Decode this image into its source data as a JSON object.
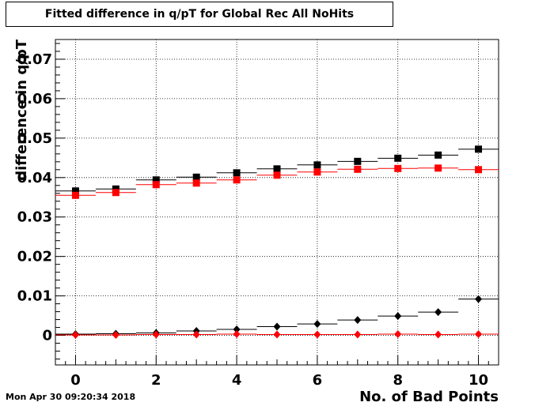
{
  "chart_data": {
    "type": "scatter",
    "title": "Fitted difference in q/pT for Global Rec All NoHits",
    "xlabel": "No. of Bad Points",
    "ylabel": "difference in q/pT",
    "xlim": [
      -0.5,
      10.5
    ],
    "ylim": [
      -0.0075,
      0.075
    ],
    "x_ticks": [
      0,
      2,
      4,
      6,
      8,
      10
    ],
    "x_tick_labels": [
      "0",
      "2",
      "4",
      "6",
      "8",
      "10"
    ],
    "y_ticks": [
      0,
      0.01,
      0.02,
      0.03,
      0.04,
      0.05,
      0.06,
      0.07
    ],
    "y_tick_labels": [
      "0",
      "0.01",
      "0.02",
      "0.03",
      "0.04",
      "0.05",
      "0.06",
      "0.07"
    ],
    "grid": true,
    "x": [
      0,
      1,
      2,
      3,
      4,
      5,
      6,
      7,
      8,
      9,
      10
    ],
    "series": [
      {
        "color": "#000000",
        "marker": "square",
        "values": [
          0.0366,
          0.0371,
          0.0394,
          0.0401,
          0.0412,
          0.0422,
          0.0432,
          0.0441,
          0.0449,
          0.0457,
          0.0472
        ]
      },
      {
        "color": "#ff0000",
        "marker": "square",
        "values": [
          0.0355,
          0.0362,
          0.0382,
          0.0386,
          0.0394,
          0.0406,
          0.0414,
          0.0421,
          0.0423,
          0.0424,
          0.042
        ]
      },
      {
        "color": "#000000",
        "marker": "diamond",
        "values": [
          0.0003,
          0.0004,
          0.0006,
          0.0011,
          0.0015,
          0.0022,
          0.0029,
          0.0039,
          0.0049,
          0.0059,
          0.0092
        ]
      },
      {
        "color": "#ff0000",
        "marker": "diamond",
        "values": [
          0.0001,
          0.0001,
          0.0002,
          0.0002,
          0.0003,
          0.0002,
          0.0002,
          0.0002,
          0.0003,
          0.0002,
          0.0003
        ]
      }
    ]
  },
  "timestamp": "Mon Apr 30 09:20:34 2018"
}
